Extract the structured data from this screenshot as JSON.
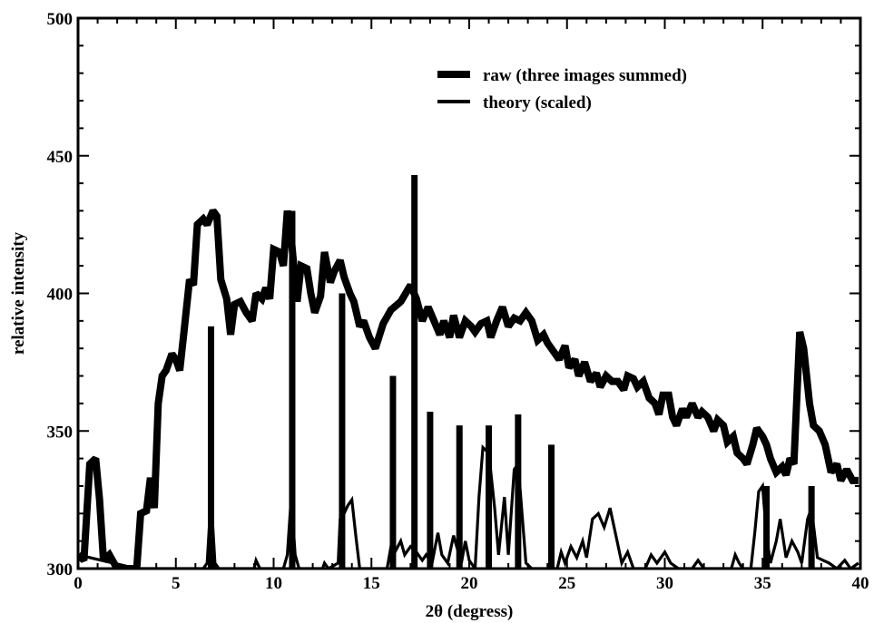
{
  "chart_data": {
    "type": "line",
    "title": "",
    "xlabel": "2θ (degress)",
    "ylabel": "relative intensity",
    "xlim": [
      0,
      40
    ],
    "ylim": [
      300,
      500
    ],
    "xticks": [
      0,
      5,
      10,
      15,
      20,
      25,
      30,
      35,
      40
    ],
    "yticks": [
      300,
      350,
      400,
      450,
      500
    ],
    "xtick_labels": [
      "0",
      "5",
      "10",
      "15",
      "20",
      "25",
      "30",
      "35",
      "40"
    ],
    "ytick_labels": [
      "300",
      "350",
      "400",
      "450",
      "500"
    ],
    "grid": false,
    "legend_position": "top-right",
    "series": [
      {
        "name": "raw (three images summed)",
        "style": "thick",
        "color": "#000000",
        "points": [
          [
            0,
            305
          ],
          [
            0.3,
            303
          ],
          [
            0.6,
            338
          ],
          [
            0.9,
            340
          ],
          [
            1.1,
            325
          ],
          [
            1.3,
            303
          ],
          [
            1.6,
            305
          ],
          [
            2.0,
            300
          ],
          [
            2.5,
            300
          ],
          [
            3.0,
            300
          ],
          [
            3.2,
            320
          ],
          [
            3.5,
            321
          ],
          [
            3.7,
            333
          ],
          [
            3.9,
            322
          ],
          [
            4.1,
            360
          ],
          [
            4.3,
            370
          ],
          [
            4.5,
            372
          ],
          [
            4.8,
            378
          ],
          [
            5.0,
            376
          ],
          [
            5.2,
            372
          ],
          [
            5.4,
            385
          ],
          [
            5.7,
            405
          ],
          [
            5.9,
            403
          ],
          [
            6.1,
            425
          ],
          [
            6.4,
            427
          ],
          [
            6.6,
            425
          ],
          [
            6.9,
            430
          ],
          [
            7.1,
            428
          ],
          [
            7.3,
            405
          ],
          [
            7.6,
            398
          ],
          [
            7.8,
            385
          ],
          [
            8.0,
            396
          ],
          [
            8.3,
            397
          ],
          [
            8.6,
            393
          ],
          [
            8.9,
            390
          ],
          [
            9.1,
            400
          ],
          [
            9.4,
            398
          ],
          [
            9.6,
            402
          ],
          [
            9.8,
            398
          ],
          [
            10.0,
            416
          ],
          [
            10.3,
            415
          ],
          [
            10.5,
            410
          ],
          [
            10.7,
            430
          ],
          [
            10.9,
            420
          ],
          [
            11.2,
            397
          ],
          [
            11.4,
            410
          ],
          [
            11.7,
            409
          ],
          [
            11.9,
            400
          ],
          [
            12.1,
            393
          ],
          [
            12.4,
            399
          ],
          [
            12.6,
            415
          ],
          [
            12.9,
            404
          ],
          [
            13.1,
            408
          ],
          [
            13.4,
            412
          ],
          [
            13.6,
            406
          ],
          [
            13.9,
            400
          ],
          [
            14.1,
            397
          ],
          [
            14.4,
            388
          ],
          [
            14.6,
            390
          ],
          [
            14.9,
            384
          ],
          [
            15.2,
            380
          ],
          [
            15.6,
            389
          ],
          [
            16.0,
            394
          ],
          [
            16.5,
            397
          ],
          [
            17.0,
            403
          ],
          [
            17.3,
            398
          ],
          [
            17.6,
            390
          ],
          [
            17.9,
            395
          ],
          [
            18.2,
            390
          ],
          [
            18.5,
            385
          ],
          [
            18.7,
            390
          ],
          [
            19.0,
            384
          ],
          [
            19.2,
            392
          ],
          [
            19.5,
            384
          ],
          [
            19.8,
            390
          ],
          [
            20.1,
            388
          ],
          [
            20.3,
            386
          ],
          [
            20.6,
            389
          ],
          [
            20.9,
            390
          ],
          [
            21.1,
            384
          ],
          [
            21.4,
            390
          ],
          [
            21.7,
            395
          ],
          [
            22.0,
            388
          ],
          [
            22.3,
            391
          ],
          [
            22.6,
            390
          ],
          [
            22.9,
            393
          ],
          [
            23.2,
            390
          ],
          [
            23.5,
            383
          ],
          [
            23.8,
            385
          ],
          [
            24.0,
            382
          ],
          [
            24.3,
            379
          ],
          [
            24.6,
            376
          ],
          [
            24.9,
            381
          ],
          [
            25.1,
            373
          ],
          [
            25.4,
            376
          ],
          [
            25.6,
            370
          ],
          [
            25.9,
            375
          ],
          [
            26.2,
            368
          ],
          [
            26.5,
            371
          ],
          [
            26.7,
            366
          ],
          [
            27.0,
            370
          ],
          [
            27.3,
            368
          ],
          [
            27.6,
            368
          ],
          [
            27.9,
            365
          ],
          [
            28.1,
            370
          ],
          [
            28.4,
            369
          ],
          [
            28.6,
            366
          ],
          [
            28.9,
            368
          ],
          [
            29.2,
            362
          ],
          [
            29.5,
            360
          ],
          [
            29.7,
            356
          ],
          [
            29.9,
            363
          ],
          [
            30.2,
            363
          ],
          [
            30.4,
            355
          ],
          [
            30.6,
            352
          ],
          [
            30.9,
            358
          ],
          [
            31.1,
            355
          ],
          [
            31.4,
            360
          ],
          [
            31.7,
            355
          ],
          [
            31.9,
            357
          ],
          [
            32.2,
            355
          ],
          [
            32.5,
            350
          ],
          [
            32.7,
            354
          ],
          [
            33.0,
            352
          ],
          [
            33.2,
            346
          ],
          [
            33.5,
            348
          ],
          [
            33.7,
            342
          ],
          [
            34.0,
            340
          ],
          [
            34.2,
            338
          ],
          [
            34.5,
            345
          ],
          [
            34.7,
            351
          ],
          [
            35.0,
            348
          ],
          [
            35.2,
            345
          ],
          [
            35.4,
            340
          ],
          [
            35.7,
            335
          ],
          [
            36.0,
            337
          ],
          [
            36.2,
            334
          ],
          [
            36.4,
            340
          ],
          [
            36.6,
            338
          ],
          [
            36.9,
            386
          ],
          [
            37.1,
            380
          ],
          [
            37.4,
            360
          ],
          [
            37.6,
            352
          ],
          [
            37.9,
            350
          ],
          [
            38.2,
            345
          ],
          [
            38.5,
            335
          ],
          [
            38.8,
            338
          ],
          [
            39.0,
            332
          ],
          [
            39.3,
            336
          ],
          [
            39.6,
            332
          ],
          [
            39.9,
            332
          ]
        ]
      },
      {
        "name": "theory (scaled)",
        "style": "thin",
        "color": "#000000",
        "sticks": [
          [
            6.8,
            388
          ],
          [
            10.95,
            430
          ],
          [
            13.5,
            400
          ],
          [
            16.1,
            370
          ],
          [
            17.2,
            443
          ],
          [
            18.0,
            357
          ],
          [
            19.5,
            352
          ],
          [
            21.0,
            352
          ],
          [
            22.5,
            356
          ],
          [
            24.2,
            345
          ],
          [
            37.5,
            330
          ],
          [
            35.2,
            330
          ]
        ],
        "points": [
          [
            0,
            305
          ],
          [
            3,
            300
          ],
          [
            6.4,
            300
          ],
          [
            6.6,
            302
          ],
          [
            6.8,
            326
          ],
          [
            7.0,
            302
          ],
          [
            7.2,
            300
          ],
          [
            9.0,
            300
          ],
          [
            9.1,
            303
          ],
          [
            9.3,
            300
          ],
          [
            10.5,
            300
          ],
          [
            10.7,
            305
          ],
          [
            10.9,
            326
          ],
          [
            11.1,
            305
          ],
          [
            11.3,
            300
          ],
          [
            12.5,
            300
          ],
          [
            12.6,
            302
          ],
          [
            12.8,
            300
          ],
          [
            13.3,
            302
          ],
          [
            13.4,
            318
          ],
          [
            13.6,
            320
          ],
          [
            13.8,
            323
          ],
          [
            14.0,
            325
          ],
          [
            14.2,
            312
          ],
          [
            14.4,
            300
          ],
          [
            15.8,
            300
          ],
          [
            16.0,
            308
          ],
          [
            16.2,
            306
          ],
          [
            16.5,
            310
          ],
          [
            16.7,
            305
          ],
          [
            17.0,
            308
          ],
          [
            17.3,
            306
          ],
          [
            17.6,
            303
          ],
          [
            17.8,
            305
          ],
          [
            18.1,
            302
          ],
          [
            18.4,
            313
          ],
          [
            18.6,
            305
          ],
          [
            18.9,
            302
          ],
          [
            19.2,
            312
          ],
          [
            19.4,
            307
          ],
          [
            19.6,
            302
          ],
          [
            19.8,
            310
          ],
          [
            20.0,
            303
          ],
          [
            20.3,
            300
          ],
          [
            20.5,
            326
          ],
          [
            20.7,
            344
          ],
          [
            21.0,
            342
          ],
          [
            21.3,
            322
          ],
          [
            21.5,
            305
          ],
          [
            21.8,
            326
          ],
          [
            22.0,
            305
          ],
          [
            22.3,
            336
          ],
          [
            22.5,
            338
          ],
          [
            22.7,
            320
          ],
          [
            22.9,
            302
          ],
          [
            23.2,
            300
          ],
          [
            24.5,
            300
          ],
          [
            24.7,
            306
          ],
          [
            24.9,
            302
          ],
          [
            25.2,
            308
          ],
          [
            25.5,
            304
          ],
          [
            25.8,
            310
          ],
          [
            26.0,
            304
          ],
          [
            26.3,
            318
          ],
          [
            26.6,
            320
          ],
          [
            26.9,
            315
          ],
          [
            27.2,
            322
          ],
          [
            27.5,
            312
          ],
          [
            27.8,
            302
          ],
          [
            28.1,
            306
          ],
          [
            28.4,
            300
          ],
          [
            29.0,
            300
          ],
          [
            29.3,
            305
          ],
          [
            29.6,
            302
          ],
          [
            30.0,
            306
          ],
          [
            30.3,
            302
          ],
          [
            30.7,
            300
          ],
          [
            31.4,
            300
          ],
          [
            31.7,
            303
          ],
          [
            32.0,
            300
          ],
          [
            33.4,
            300
          ],
          [
            33.6,
            305
          ],
          [
            33.8,
            302
          ],
          [
            34.0,
            300
          ],
          [
            34.4,
            300
          ],
          [
            34.6,
            313
          ],
          [
            34.8,
            328
          ],
          [
            35.0,
            330
          ],
          [
            35.2,
            312
          ],
          [
            35.4,
            302
          ],
          [
            35.7,
            310
          ],
          [
            35.9,
            318
          ],
          [
            36.2,
            304
          ],
          [
            36.5,
            310
          ],
          [
            36.8,
            306
          ],
          [
            37.0,
            302
          ],
          [
            37.3,
            318
          ],
          [
            37.5,
            322
          ],
          [
            37.8,
            304
          ],
          [
            38.1,
            303
          ],
          [
            38.4,
            302
          ],
          [
            38.8,
            300
          ],
          [
            39.2,
            303
          ],
          [
            39.5,
            300
          ],
          [
            39.9,
            302
          ]
        ]
      }
    ]
  }
}
